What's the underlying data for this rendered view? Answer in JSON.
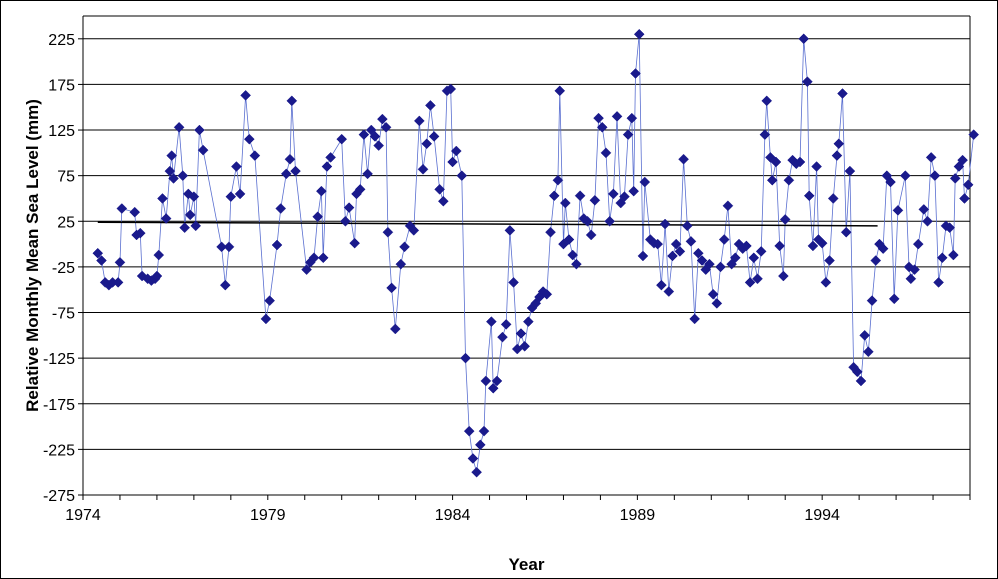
{
  "chart_data": {
    "type": "scatter",
    "xlabel": "Year",
    "ylabel": "Relative Monthly Mean Sea Level (mm)",
    "xlim": [
      1974,
      1998
    ],
    "ylim": [
      -275,
      250
    ],
    "x_ticks": [
      1974,
      1979,
      1984,
      1989,
      1994
    ],
    "x_tick_labels": [
      "1974",
      "1979",
      "1984",
      "1989",
      "1994"
    ],
    "y_ticks": [
      225,
      175,
      125,
      75,
      25,
      -25,
      -75,
      -125,
      -175,
      -225,
      -275
    ],
    "y_tick_labels": [
      "225",
      "175",
      "125",
      "75",
      "25",
      "-25",
      "-75",
      "-125",
      "-175",
      "-225",
      "-275"
    ],
    "grid": "horizontal",
    "colors": {
      "marker": "#1a1a8c",
      "connector": "#5a6fd0",
      "trend": "#000000",
      "grid": "#000000"
    },
    "trend_line": {
      "x": [
        1974.4,
        1995.5
      ],
      "y": [
        24,
        20
      ]
    },
    "series": [
      {
        "marker": "diamond",
        "points": [
          [
            1974.4,
            -10
          ],
          [
            1974.5,
            -18
          ],
          [
            1974.6,
            -42
          ],
          [
            1974.7,
            -45
          ],
          [
            1974.8,
            -42
          ],
          [
            1974.95,
            -42
          ],
          [
            1975.0,
            -20
          ],
          [
            1975.05,
            39
          ],
          [
            1975.4,
            35
          ],
          [
            1975.45,
            10
          ],
          [
            1975.55,
            12
          ],
          [
            1975.6,
            -35
          ],
          [
            1975.75,
            -38
          ],
          [
            1975.85,
            -40
          ],
          [
            1975.95,
            -38
          ],
          [
            1976.0,
            -35
          ],
          [
            1976.05,
            -12
          ],
          [
            1976.15,
            50
          ],
          [
            1976.25,
            28
          ],
          [
            1976.35,
            80
          ],
          [
            1976.4,
            97
          ],
          [
            1976.45,
            72
          ],
          [
            1976.6,
            128
          ],
          [
            1976.7,
            75
          ],
          [
            1976.75,
            18
          ],
          [
            1976.85,
            55
          ],
          [
            1976.9,
            32
          ],
          [
            1977.0,
            52
          ],
          [
            1977.05,
            20
          ],
          [
            1977.15,
            125
          ],
          [
            1977.25,
            103
          ],
          [
            1977.75,
            -3
          ],
          [
            1977.85,
            -45
          ],
          [
            1977.95,
            -3
          ],
          [
            1978.0,
            52
          ],
          [
            1978.15,
            85
          ],
          [
            1978.25,
            55
          ],
          [
            1978.4,
            163
          ],
          [
            1978.5,
            115
          ],
          [
            1978.65,
            97
          ],
          [
            1978.95,
            -82
          ],
          [
            1979.05,
            -62
          ],
          [
            1979.25,
            -1
          ],
          [
            1979.35,
            39
          ],
          [
            1979.5,
            77
          ],
          [
            1979.6,
            93
          ],
          [
            1979.65,
            157
          ],
          [
            1979.75,
            80
          ],
          [
            1980.05,
            -28
          ],
          [
            1980.15,
            -20
          ],
          [
            1980.25,
            -15
          ],
          [
            1980.35,
            30
          ],
          [
            1980.45,
            58
          ],
          [
            1980.5,
            -15
          ],
          [
            1980.6,
            85
          ],
          [
            1980.7,
            95
          ],
          [
            1981.0,
            115
          ],
          [
            1981.1,
            25
          ],
          [
            1981.2,
            40
          ],
          [
            1981.35,
            1
          ],
          [
            1981.4,
            55
          ],
          [
            1981.5,
            60
          ],
          [
            1981.6,
            120
          ],
          [
            1981.7,
            77
          ],
          [
            1981.8,
            125
          ],
          [
            1981.9,
            118
          ],
          [
            1982.0,
            108
          ],
          [
            1982.1,
            137
          ],
          [
            1982.2,
            128
          ],
          [
            1982.25,
            13
          ],
          [
            1982.35,
            -48
          ],
          [
            1982.45,
            -93
          ],
          [
            1982.6,
            -22
          ],
          [
            1982.7,
            -3
          ],
          [
            1982.85,
            20
          ],
          [
            1982.95,
            15
          ],
          [
            1983.1,
            135
          ],
          [
            1983.2,
            82
          ],
          [
            1983.3,
            110
          ],
          [
            1983.4,
            152
          ],
          [
            1983.5,
            118
          ],
          [
            1983.65,
            60
          ],
          [
            1983.75,
            47
          ],
          [
            1983.85,
            168
          ],
          [
            1983.95,
            170
          ],
          [
            1984.0,
            90
          ],
          [
            1984.1,
            102
          ],
          [
            1984.25,
            75
          ],
          [
            1984.35,
            -125
          ],
          [
            1984.45,
            -205
          ],
          [
            1984.55,
            -235
          ],
          [
            1984.65,
            -250
          ],
          [
            1984.75,
            -220
          ],
          [
            1984.85,
            -205
          ],
          [
            1984.9,
            -150
          ],
          [
            1985.05,
            -85
          ],
          [
            1985.1,
            -158
          ],
          [
            1985.2,
            -150
          ],
          [
            1985.35,
            -102
          ],
          [
            1985.45,
            -88
          ],
          [
            1985.55,
            15
          ],
          [
            1985.65,
            -42
          ],
          [
            1985.75,
            -115
          ],
          [
            1985.85,
            -98
          ],
          [
            1985.95,
            -112
          ],
          [
            1986.05,
            -85
          ],
          [
            1986.15,
            -70
          ],
          [
            1986.25,
            -65
          ],
          [
            1986.35,
            -58
          ],
          [
            1986.45,
            -52
          ],
          [
            1986.55,
            -55
          ],
          [
            1986.65,
            13
          ],
          [
            1986.75,
            53
          ],
          [
            1986.85,
            70
          ],
          [
            1986.9,
            168
          ],
          [
            1987.0,
            0
          ],
          [
            1987.05,
            45
          ],
          [
            1987.15,
            5
          ],
          [
            1987.25,
            -12
          ],
          [
            1987.35,
            -22
          ],
          [
            1987.45,
            53
          ],
          [
            1987.55,
            28
          ],
          [
            1987.65,
            25
          ],
          [
            1987.75,
            10
          ],
          [
            1987.85,
            48
          ],
          [
            1987.95,
            138
          ],
          [
            1988.05,
            128
          ],
          [
            1988.15,
            100
          ],
          [
            1988.25,
            25
          ],
          [
            1988.35,
            55
          ],
          [
            1988.45,
            140
          ],
          [
            1988.55,
            45
          ],
          [
            1988.65,
            52
          ],
          [
            1988.75,
            120
          ],
          [
            1988.85,
            138
          ],
          [
            1988.9,
            58
          ],
          [
            1988.95,
            187
          ],
          [
            1989.05,
            230
          ],
          [
            1989.15,
            -13
          ],
          [
            1989.2,
            68
          ],
          [
            1989.35,
            5
          ],
          [
            1989.45,
            1
          ],
          [
            1989.55,
            0
          ],
          [
            1989.65,
            -45
          ],
          [
            1989.75,
            22
          ],
          [
            1989.85,
            -52
          ],
          [
            1989.95,
            -13
          ],
          [
            1990.05,
            0
          ],
          [
            1990.15,
            -8
          ],
          [
            1990.25,
            93
          ],
          [
            1990.35,
            20
          ],
          [
            1990.45,
            3
          ],
          [
            1990.55,
            -82
          ],
          [
            1990.65,
            -10
          ],
          [
            1990.75,
            -18
          ],
          [
            1990.85,
            -28
          ],
          [
            1990.95,
            -22
          ],
          [
            1991.05,
            -55
          ],
          [
            1991.15,
            -65
          ],
          [
            1991.25,
            -25
          ],
          [
            1991.35,
            5
          ],
          [
            1991.45,
            42
          ],
          [
            1991.55,
            -22
          ],
          [
            1991.65,
            -15
          ],
          [
            1991.75,
            0
          ],
          [
            1991.85,
            -5
          ],
          [
            1991.95,
            -2
          ],
          [
            1992.05,
            -42
          ],
          [
            1992.15,
            -15
          ],
          [
            1992.25,
            -38
          ],
          [
            1992.35,
            -8
          ],
          [
            1992.45,
            120
          ],
          [
            1992.5,
            157
          ],
          [
            1992.6,
            95
          ],
          [
            1992.65,
            70
          ],
          [
            1992.75,
            90
          ],
          [
            1992.85,
            -2
          ],
          [
            1992.95,
            -35
          ],
          [
            1993.0,
            27
          ],
          [
            1993.1,
            70
          ],
          [
            1993.2,
            92
          ],
          [
            1993.3,
            88
          ],
          [
            1993.4,
            90
          ],
          [
            1993.5,
            225
          ],
          [
            1993.6,
            178
          ],
          [
            1993.65,
            53
          ],
          [
            1993.75,
            -2
          ],
          [
            1993.85,
            85
          ],
          [
            1993.9,
            5
          ],
          [
            1994.0,
            1
          ],
          [
            1994.1,
            -42
          ],
          [
            1994.2,
            -18
          ],
          [
            1994.3,
            50
          ],
          [
            1994.4,
            97
          ],
          [
            1994.45,
            110
          ],
          [
            1994.55,
            165
          ],
          [
            1994.65,
            13
          ],
          [
            1994.75,
            80
          ],
          [
            1994.85,
            -135
          ],
          [
            1994.95,
            -140
          ],
          [
            1995.05,
            -150
          ],
          [
            1995.15,
            -100
          ],
          [
            1995.25,
            -118
          ],
          [
            1995.35,
            -62
          ],
          [
            1995.45,
            -18
          ],
          [
            1995.55,
            0
          ],
          [
            1995.65,
            -5
          ],
          [
            1995.75,
            75
          ],
          [
            1995.85,
            68
          ],
          [
            1995.95,
            -60
          ],
          [
            1996.05,
            37
          ],
          [
            1996.25,
            75
          ],
          [
            1996.35,
            -25
          ],
          [
            1996.4,
            -38
          ],
          [
            1996.5,
            -28
          ],
          [
            1996.6,
            0
          ],
          [
            1996.75,
            38
          ],
          [
            1996.85,
            25
          ],
          [
            1996.95,
            95
          ],
          [
            1997.05,
            75
          ],
          [
            1997.15,
            -42
          ],
          [
            1997.25,
            -15
          ],
          [
            1997.35,
            20
          ],
          [
            1997.45,
            18
          ],
          [
            1997.55,
            -12
          ],
          [
            1997.6,
            72
          ],
          [
            1997.7,
            85
          ],
          [
            1997.8,
            92
          ],
          [
            1997.85,
            50
          ],
          [
            1997.95,
            65
          ],
          [
            1998.1,
            120
          ]
        ]
      }
    ]
  }
}
